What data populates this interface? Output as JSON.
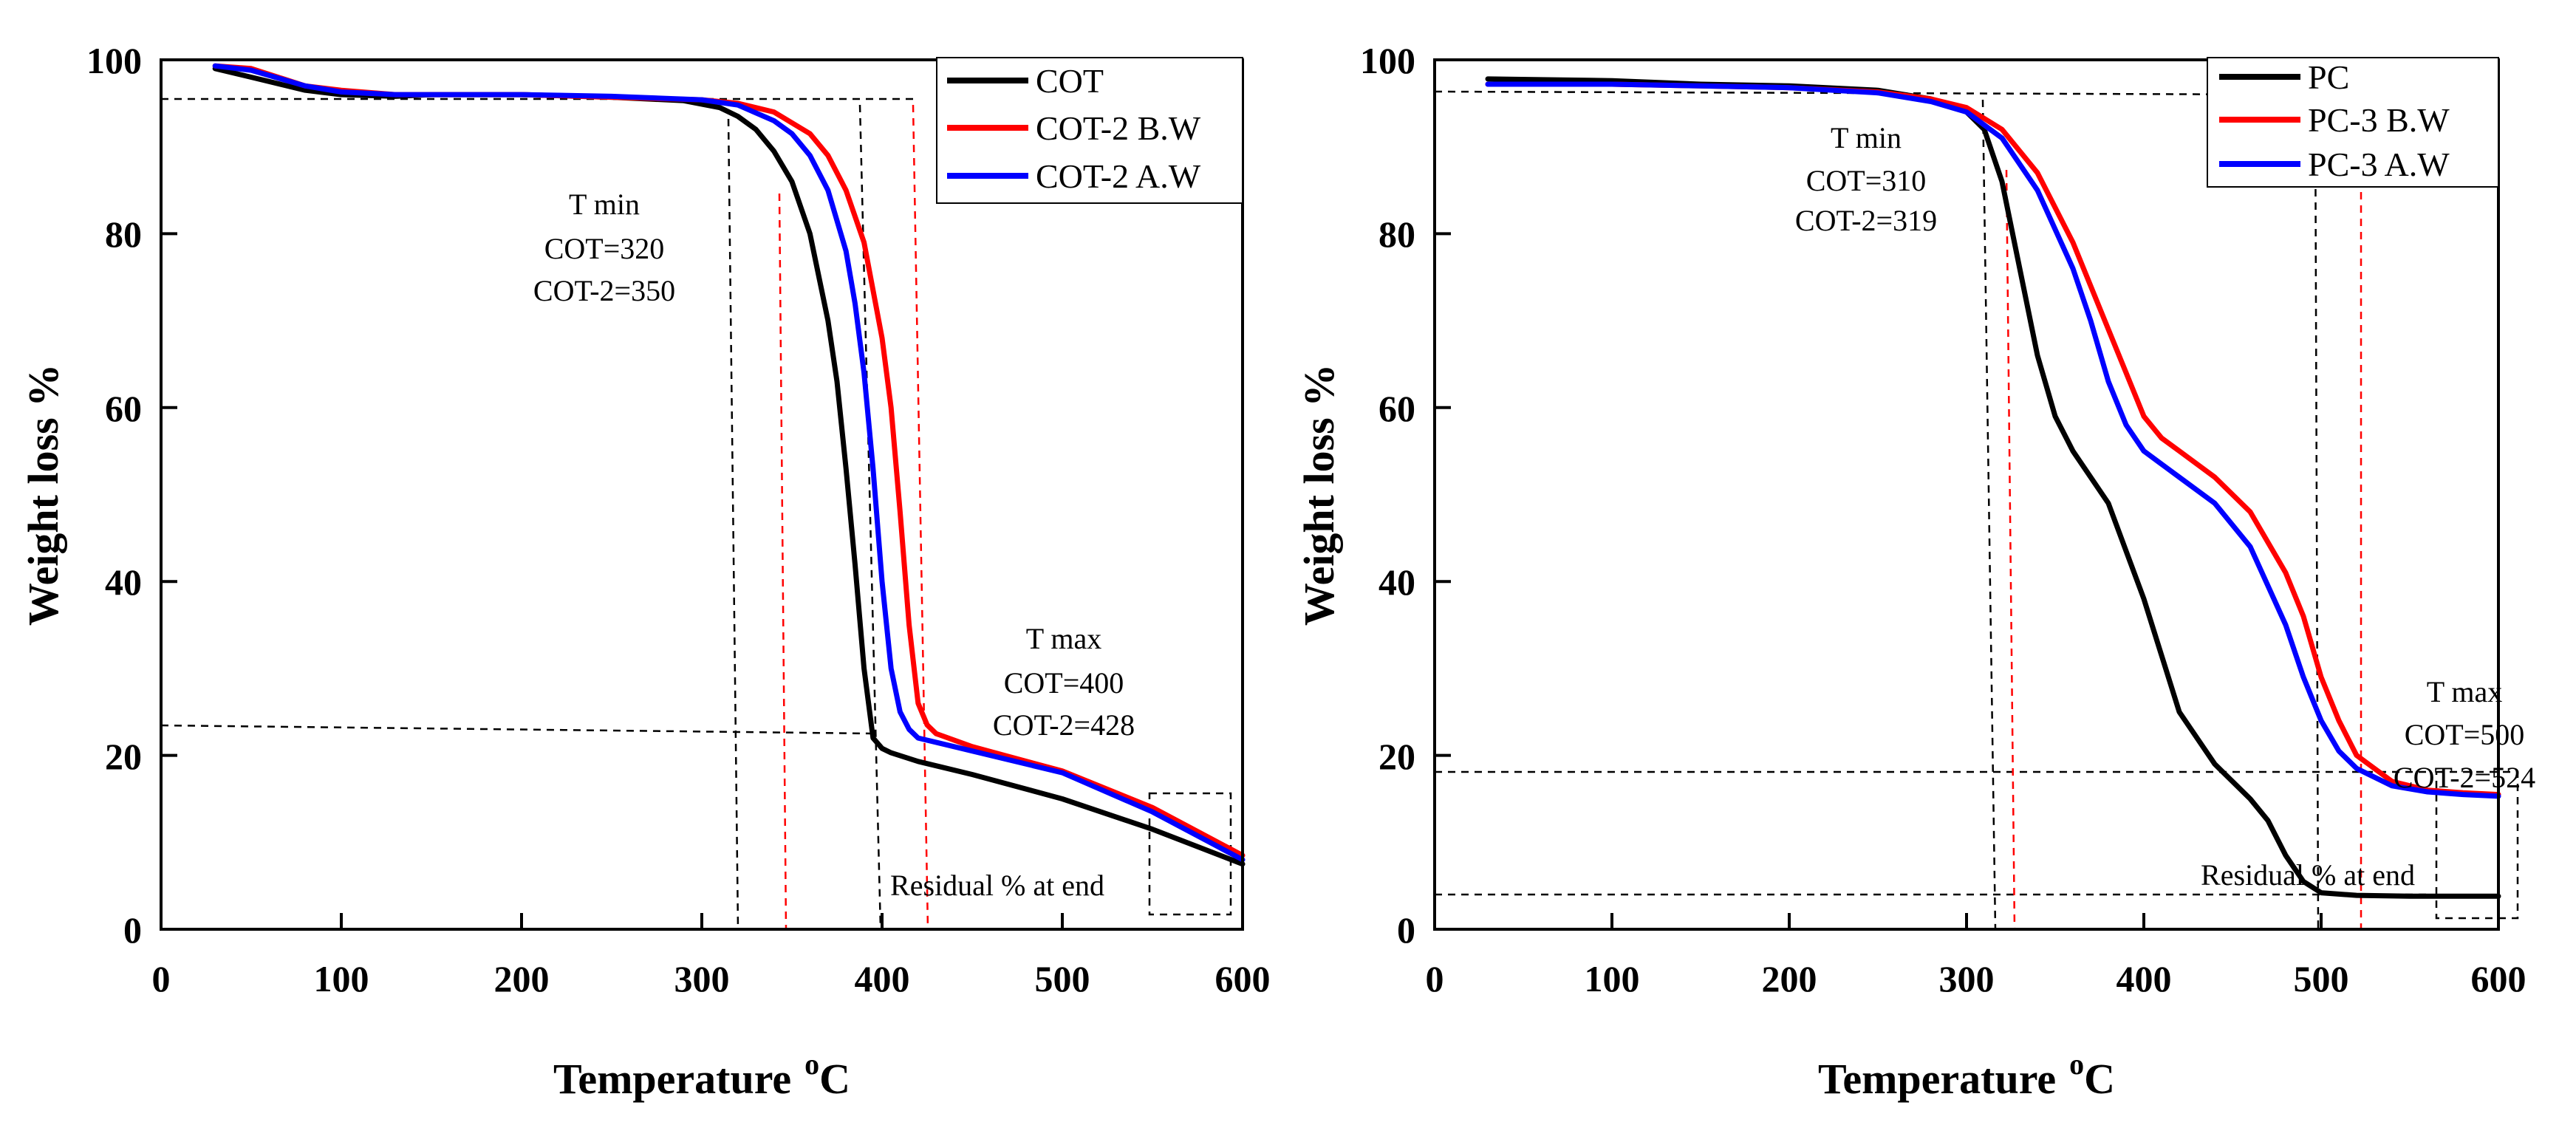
{
  "chart_data": [
    {
      "type": "line",
      "xlabel": "Temperature",
      "xlabel_sup": "o",
      "xlabel_unit": "C",
      "ylabel": "Weight loss %",
      "xlim": [
        0,
        600
      ],
      "ylim": [
        0,
        100
      ],
      "xticks": [
        "0",
        "100",
        "200",
        "300",
        "400",
        "500",
        "600"
      ],
      "yticks": [
        "0",
        "20",
        "40",
        "60",
        "80",
        "100"
      ],
      "legend_position": "top-right",
      "series": [
        {
          "name": "COT",
          "color": "#000000",
          "x": [
            30,
            50,
            80,
            100,
            130,
            150,
            200,
            250,
            290,
            310,
            320,
            330,
            340,
            350,
            360,
            370,
            375,
            380,
            385,
            390,
            395,
            400,
            405,
            420,
            450,
            500,
            550,
            600
          ],
          "y": [
            99,
            98,
            96.5,
            96,
            95.8,
            96,
            96,
            95.7,
            95.3,
            94.5,
            93.5,
            92,
            89.5,
            86,
            80,
            70,
            63,
            53,
            42,
            30,
            22,
            20.8,
            20.3,
            19.3,
            17.8,
            15,
            11.5,
            7.5
          ]
        },
        {
          "name": "COT-2 B.W",
          "color": "#ff0000",
          "x": [
            30,
            50,
            80,
            100,
            130,
            150,
            200,
            250,
            300,
            320,
            340,
            360,
            370,
            380,
            390,
            400,
            405,
            410,
            415,
            420,
            425,
            430,
            450,
            500,
            550,
            600
          ],
          "y": [
            99.3,
            99,
            97,
            96.5,
            96,
            96,
            96,
            95.7,
            95.4,
            95,
            94,
            91.5,
            89,
            85,
            79,
            68,
            60,
            48,
            35,
            26,
            23.5,
            22.5,
            21,
            18.2,
            14,
            8.5
          ]
        },
        {
          "name": "COT-2 A.W",
          "color": "#0000ff",
          "x": [
            30,
            50,
            80,
            100,
            130,
            150,
            200,
            250,
            300,
            320,
            340,
            350,
            360,
            370,
            380,
            385,
            390,
            395,
            400,
            405,
            410,
            415,
            420,
            450,
            500,
            550,
            600
          ],
          "y": [
            99.3,
            98.8,
            97,
            96.3,
            96,
            96,
            96,
            95.8,
            95.4,
            94.8,
            93,
            91.5,
            89,
            85,
            78,
            72,
            64,
            53,
            40,
            30,
            25,
            23,
            22,
            20.5,
            18,
            13.5,
            8
          ]
        }
      ],
      "annotations": {
        "tmin": {
          "title": "T min",
          "line1": "COT=320",
          "line2": "COT-2=350"
        },
        "tmax": {
          "title": "T max",
          "line1": "COT=400",
          "line2": "COT-2=428"
        },
        "residual": "Residual  % at end"
      }
    },
    {
      "type": "line",
      "xlabel": "Temperature",
      "xlabel_sup": "o",
      "xlabel_unit": "C",
      "ylabel": "Weight loss %",
      "xlim": [
        0,
        600
      ],
      "ylim": [
        0,
        100
      ],
      "xticks": [
        "0",
        "100",
        "200",
        "300",
        "400",
        "500",
        "600"
      ],
      "yticks": [
        "0",
        "20",
        "40",
        "60",
        "80",
        "100"
      ],
      "legend_position": "top-right",
      "series": [
        {
          "name": "PC",
          "color": "#000000",
          "x": [
            30,
            100,
            150,
            200,
            250,
            280,
            300,
            310,
            320,
            330,
            340,
            350,
            360,
            380,
            400,
            420,
            440,
            460,
            470,
            480,
            490,
            500,
            520,
            550,
            600
          ],
          "y": [
            97.8,
            97.6,
            97.2,
            97,
            96.5,
            95.5,
            94,
            92,
            86,
            76,
            66,
            59,
            55,
            49,
            38,
            25,
            19,
            15,
            12.5,
            8.5,
            5.5,
            4.2,
            3.9,
            3.8,
            3.8
          ]
        },
        {
          "name": "PC-3 B.W",
          "color": "#ff0000",
          "x": [
            30,
            100,
            150,
            200,
            250,
            280,
            300,
            320,
            340,
            360,
            380,
            390,
            400,
            410,
            420,
            440,
            460,
            480,
            490,
            500,
            510,
            520,
            540,
            560,
            580,
            600
          ],
          "y": [
            97.2,
            97.2,
            97,
            96.8,
            96.3,
            95.5,
            94.5,
            92,
            87,
            79,
            69,
            64,
            59,
            56.5,
            55,
            52,
            48,
            41,
            36,
            29,
            24,
            20,
            17,
            16,
            15.7,
            15.5
          ]
        },
        {
          "name": "PC-3 A.W",
          "color": "#0000ff",
          "x": [
            30,
            100,
            150,
            200,
            250,
            280,
            300,
            320,
            340,
            360,
            370,
            380,
            390,
            400,
            410,
            420,
            440,
            460,
            480,
            490,
            500,
            510,
            520,
            540,
            560,
            580,
            600
          ],
          "y": [
            97.2,
            97.2,
            97,
            96.8,
            96.2,
            95.2,
            94,
            91,
            85,
            76,
            70,
            63,
            58,
            55,
            53.5,
            52,
            49,
            44,
            35,
            29,
            24,
            20.5,
            18.5,
            16.5,
            15.8,
            15.5,
            15.3
          ]
        }
      ],
      "annotations": {
        "tmin": {
          "title": "T min",
          "line1": "COT=310",
          "line2": "COT-2=319"
        },
        "tmax": {
          "title": "T max",
          "line1": "COT=500",
          "line2": "COT-2=524"
        },
        "residual": "Residual  % at end"
      }
    }
  ]
}
